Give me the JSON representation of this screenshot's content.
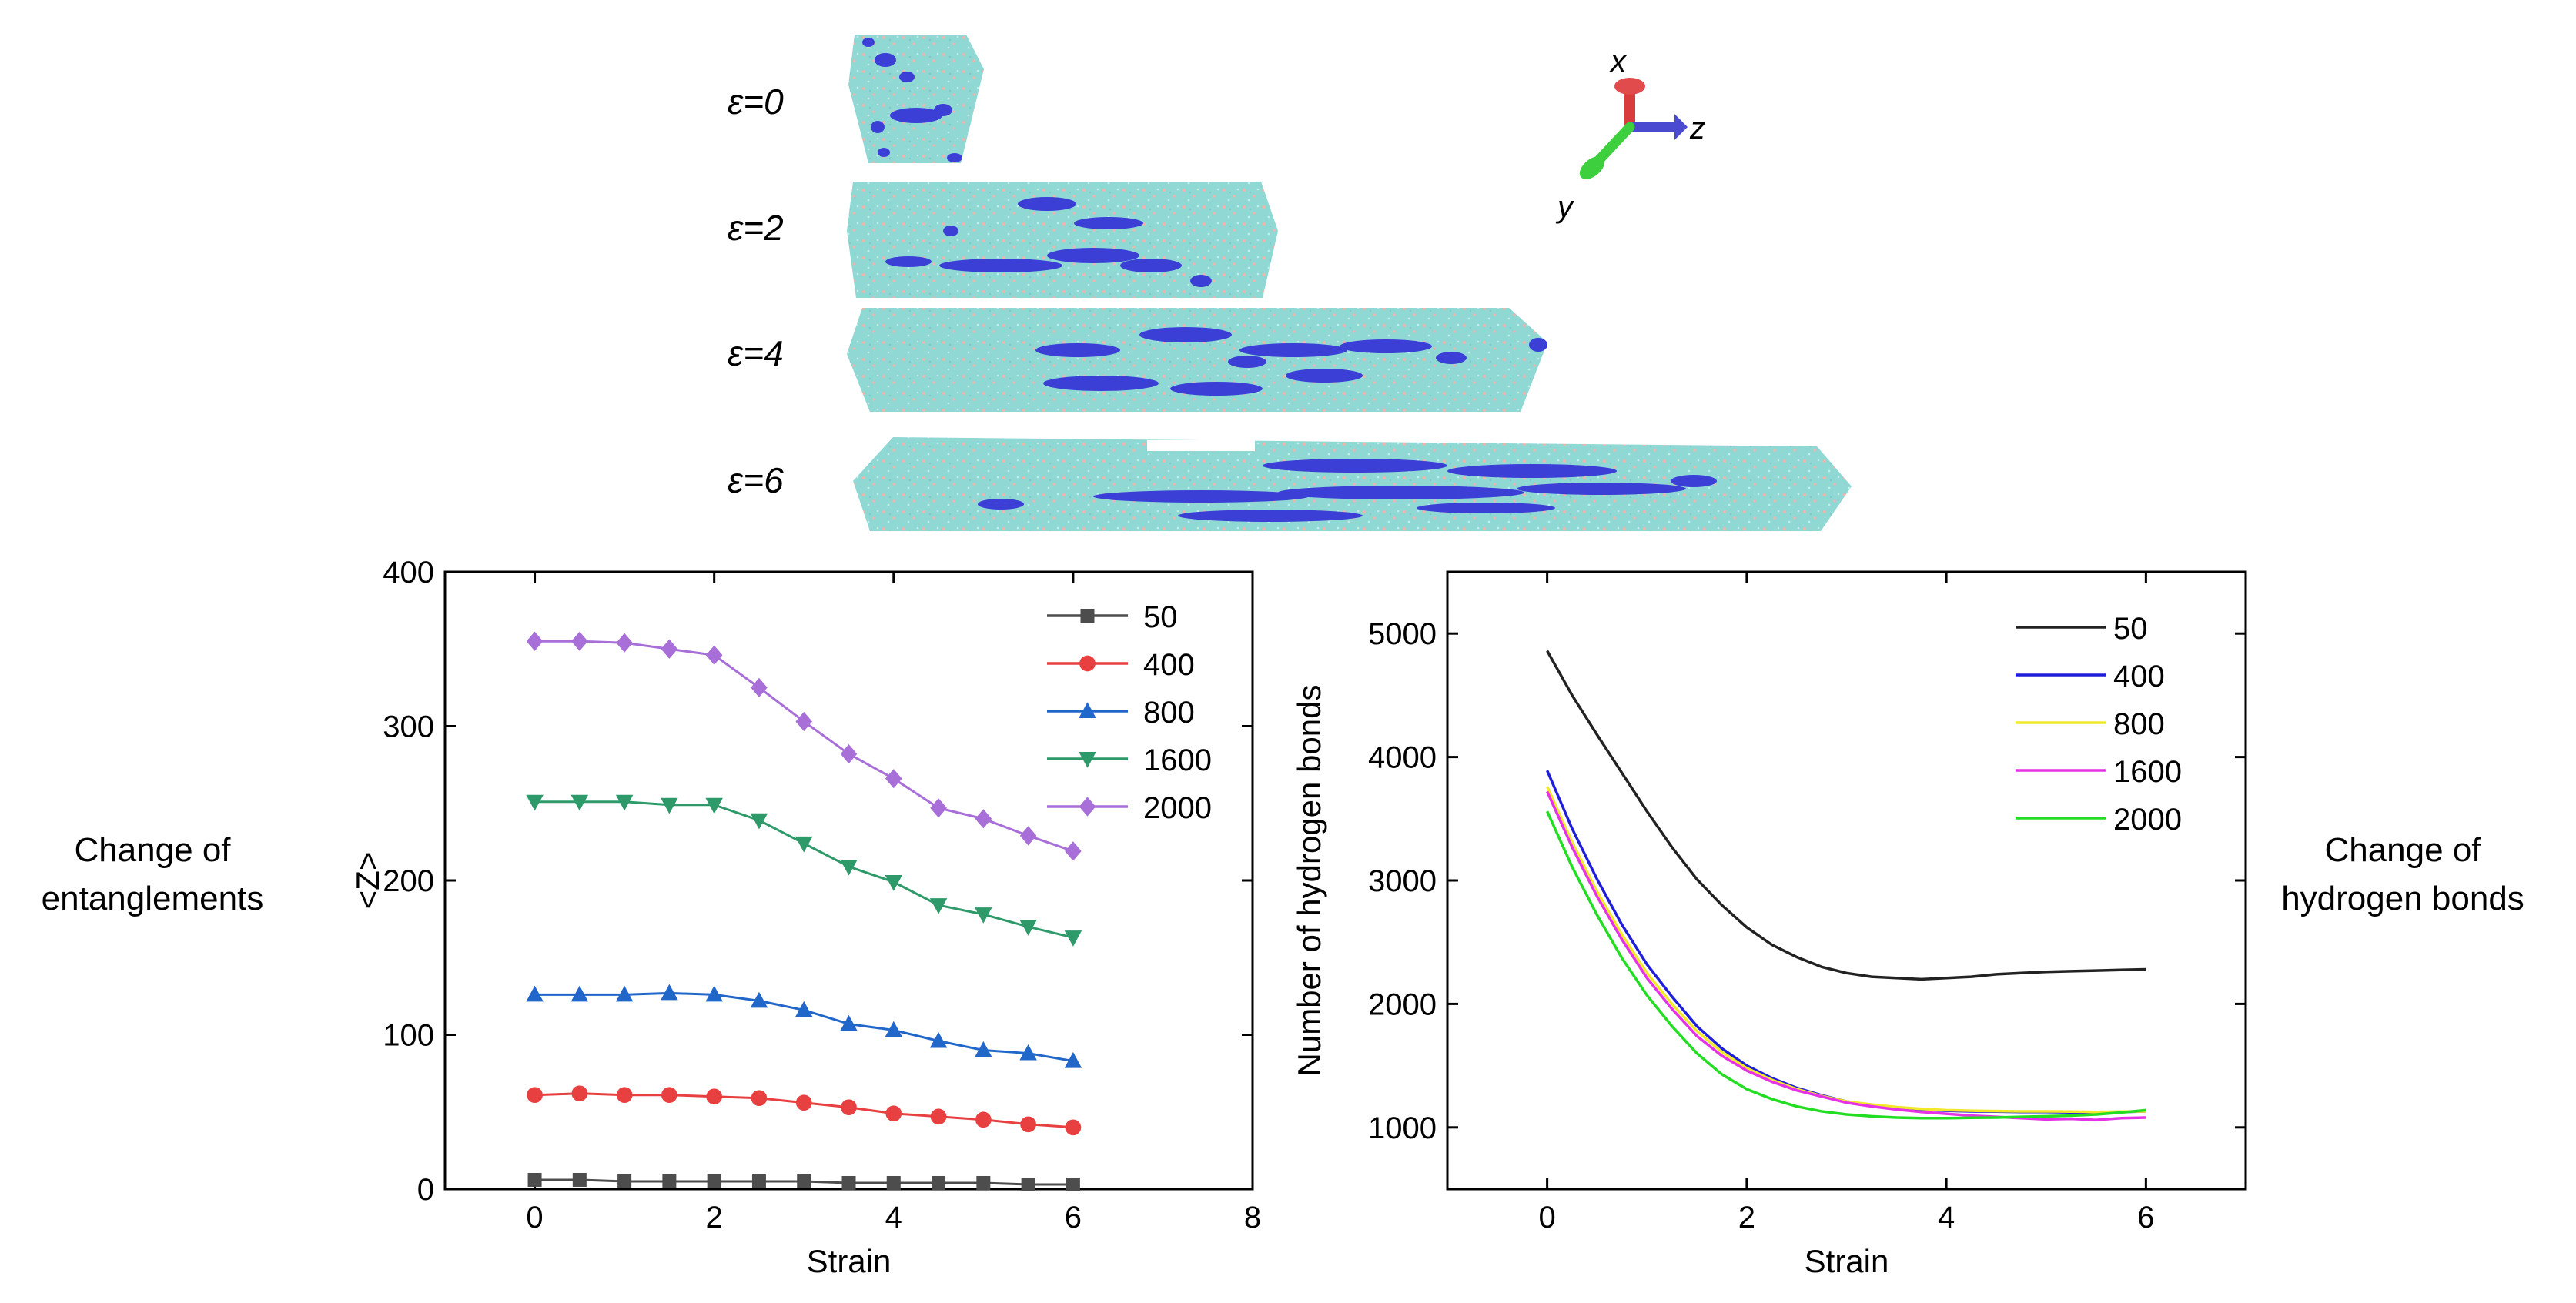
{
  "figure": {
    "strain_rows": [
      {
        "label": "ε=0"
      },
      {
        "label": "ε=2"
      },
      {
        "label": "ε=4"
      },
      {
        "label": "ε=6"
      }
    ],
    "axes_triad": {
      "x": "x",
      "y": "y",
      "z": "z"
    },
    "colors": {
      "matrix": "#8fd8d4",
      "matrix_speckle": "#e9b6b0",
      "cluster": "#3b3fd6",
      "axis_x": "#d93c3c",
      "axis_y": "#3ecf3e",
      "axis_z": "#4a4ad0"
    },
    "side_labels": {
      "left": [
        "Change of",
        "entanglements"
      ],
      "right": [
        "Change of",
        "hydrogen bonds"
      ]
    }
  },
  "chart_data": [
    {
      "type": "line",
      "title": "",
      "xlabel": "Strain",
      "ylabel": "<Z>",
      "xlim": [
        -1,
        8
      ],
      "ylim": [
        0,
        400
      ],
      "xticks": [
        0,
        2,
        4,
        6,
        8
      ],
      "yticks": [
        0,
        100,
        200,
        300,
        400
      ],
      "grid": false,
      "legend": "top-right",
      "x": [
        0,
        0.5,
        1,
        1.5,
        2,
        2.5,
        3,
        3.5,
        4,
        4.5,
        5,
        5.5,
        6
      ],
      "series": [
        {
          "name": "50",
          "color": "#4d4d4d",
          "marker": "square",
          "values": [
            6,
            6,
            5,
            5,
            5,
            5,
            5,
            4,
            4,
            4,
            4,
            3,
            3
          ]
        },
        {
          "name": "400",
          "color": "#e84040",
          "marker": "circle",
          "values": [
            61,
            62,
            61,
            61,
            60,
            59,
            56,
            53,
            49,
            47,
            45,
            42,
            40
          ]
        },
        {
          "name": "800",
          "color": "#2166c9",
          "marker": "triangle-up",
          "values": [
            126,
            126,
            126,
            127,
            126,
            122,
            116,
            107,
            103,
            96,
            90,
            88,
            83
          ]
        },
        {
          "name": "1600",
          "color": "#2e9a6a",
          "marker": "triangle-down",
          "values": [
            251,
            251,
            251,
            249,
            249,
            239,
            224,
            209,
            199,
            184,
            178,
            170,
            163
          ]
        },
        {
          "name": "2000",
          "color": "#a86fd8",
          "marker": "diamond",
          "values": [
            355,
            355,
            354,
            350,
            346,
            325,
            303,
            282,
            266,
            247,
            240,
            229,
            219
          ]
        }
      ]
    },
    {
      "type": "line",
      "title": "",
      "xlabel": "Strain",
      "ylabel": "Number of hydrogen bonds",
      "xlim": [
        -1,
        7
      ],
      "ylim": [
        500,
        5500
      ],
      "xticks": [
        0,
        2,
        4,
        6
      ],
      "yticks": [
        1000,
        2000,
        3000,
        4000,
        5000
      ],
      "grid": false,
      "legend": "top-right",
      "x": [
        0,
        0.25,
        0.5,
        0.75,
        1,
        1.25,
        1.5,
        1.75,
        2,
        2.25,
        2.5,
        2.75,
        3,
        3.25,
        3.5,
        3.75,
        4,
        4.25,
        4.5,
        4.75,
        5,
        5.25,
        5.5,
        5.75,
        6
      ],
      "series": [
        {
          "name": "50",
          "color": "#222222",
          "values": [
            4860,
            4500,
            4180,
            3870,
            3560,
            3270,
            3010,
            2800,
            2620,
            2480,
            2380,
            2300,
            2250,
            2220,
            2210,
            2200,
            2210,
            2220,
            2240,
            2250,
            2260,
            2265,
            2270,
            2275,
            2280
          ]
        },
        {
          "name": "400",
          "color": "#1f1fd9",
          "values": [
            3890,
            3420,
            3010,
            2640,
            2320,
            2060,
            1820,
            1640,
            1500,
            1400,
            1320,
            1260,
            1210,
            1180,
            1160,
            1145,
            1135,
            1130,
            1128,
            1125,
            1125,
            1122,
            1120,
            1125,
            1130
          ]
        },
        {
          "name": "800",
          "color": "#f2e92a",
          "values": [
            3760,
            3310,
            2910,
            2560,
            2250,
            2000,
            1780,
            1610,
            1480,
            1385,
            1310,
            1255,
            1210,
            1185,
            1165,
            1150,
            1140,
            1135,
            1132,
            1130,
            1130,
            1128,
            1125,
            1128,
            1130
          ]
        },
        {
          "name": "1600",
          "color": "#e632e6",
          "values": [
            3720,
            3270,
            2870,
            2520,
            2210,
            1960,
            1740,
            1580,
            1460,
            1370,
            1300,
            1250,
            1200,
            1170,
            1145,
            1125,
            1110,
            1095,
            1085,
            1075,
            1065,
            1070,
            1060,
            1075,
            1080
          ]
        },
        {
          "name": "2000",
          "color": "#22dd22",
          "values": [
            3560,
            3110,
            2720,
            2370,
            2070,
            1820,
            1600,
            1430,
            1310,
            1230,
            1170,
            1130,
            1105,
            1090,
            1080,
            1075,
            1075,
            1078,
            1080,
            1085,
            1090,
            1095,
            1105,
            1120,
            1140
          ]
        }
      ]
    }
  ]
}
